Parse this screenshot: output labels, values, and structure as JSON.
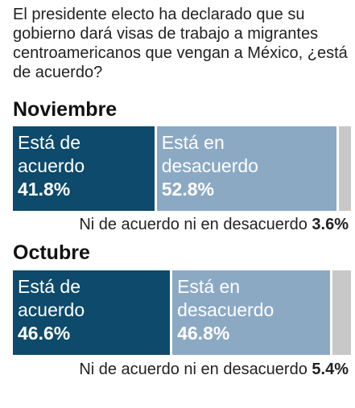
{
  "question": "El presidente electo ha declarado que su gobierno dará visas de trabajo a migrantes centroamericanos que vengan a México, ¿está de acuerdo?",
  "labels": {
    "agree_line1": "Está de",
    "agree_line2": "acuerdo",
    "disagree_line1": "Está en",
    "disagree_line2": "desacuerdo",
    "neither": "Ni de acuerdo ni en desacuerdo"
  },
  "colors": {
    "agree": "#0d4a6b",
    "disagree": "#8ca9c4",
    "neither": "#c8c8c8"
  },
  "chart_data": [
    {
      "type": "bar",
      "title": "Noviembre",
      "categories": [
        "Está de acuerdo",
        "Está en desacuerdo",
        "Ni de acuerdo ni en desacuerdo"
      ],
      "values": [
        41.8,
        52.8,
        3.6
      ],
      "value_labels": [
        "41.8%",
        "52.8%",
        "3.6%"
      ]
    },
    {
      "type": "bar",
      "title": "Octubre",
      "categories": [
        "Está de acuerdo",
        "Está en desacuerdo",
        "Ni de acuerdo ni en desacuerdo"
      ],
      "values": [
        46.6,
        46.8,
        5.4
      ],
      "value_labels": [
        "46.6%",
        "46.8%",
        "5.4%"
      ]
    }
  ]
}
